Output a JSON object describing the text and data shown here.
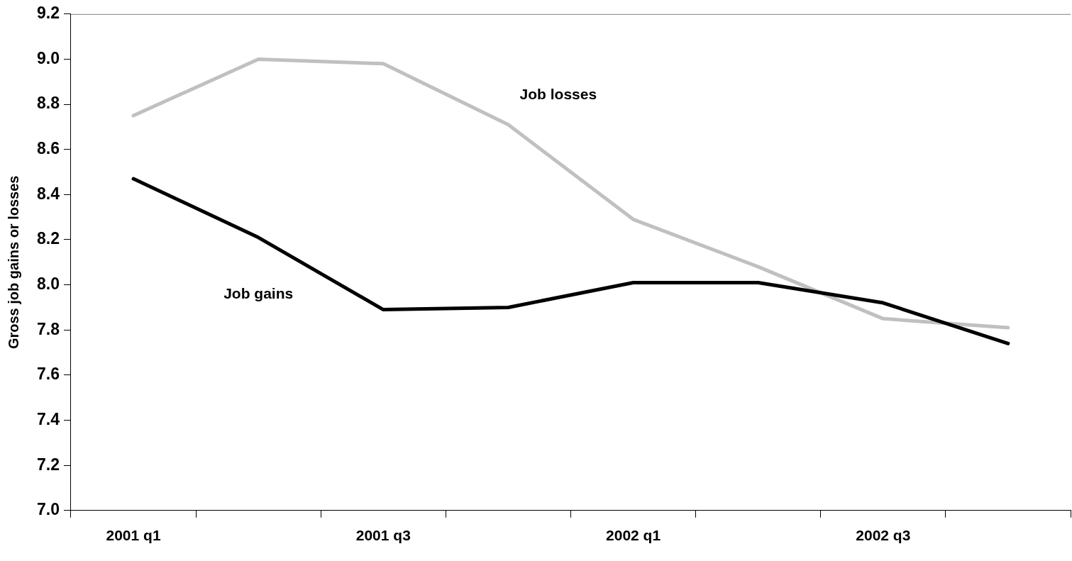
{
  "chart_data": {
    "type": "line",
    "ylabel": "Gross job gains or losses",
    "categories": [
      "2001 q1",
      null,
      "2001 q3",
      null,
      "2002 q1",
      null,
      "2002 q3",
      null
    ],
    "series": [
      {
        "name": "Job gains",
        "color": "#000000",
        "values": [
          8.47,
          8.21,
          7.89,
          7.9,
          8.01,
          8.01,
          7.92,
          7.74
        ]
      },
      {
        "name": "Job losses",
        "color": "#c0c0c0",
        "values": [
          8.75,
          9.0,
          8.98,
          8.71,
          8.29,
          8.08,
          7.85,
          7.81
        ]
      }
    ],
    "ylim": [
      7.0,
      9.2
    ],
    "yticks": [
      {
        "value": 7,
        "label": "7.0"
      },
      7.2,
      7.4,
      7.6,
      7.8,
      {
        "value": 8,
        "label": "8.0"
      },
      8.2,
      8.4,
      8.6,
      8.8,
      {
        "value": 9,
        "label": "9.0"
      },
      9.2
    ],
    "grid": false,
    "legend": false,
    "marker": "none",
    "line_style": "solid"
  }
}
